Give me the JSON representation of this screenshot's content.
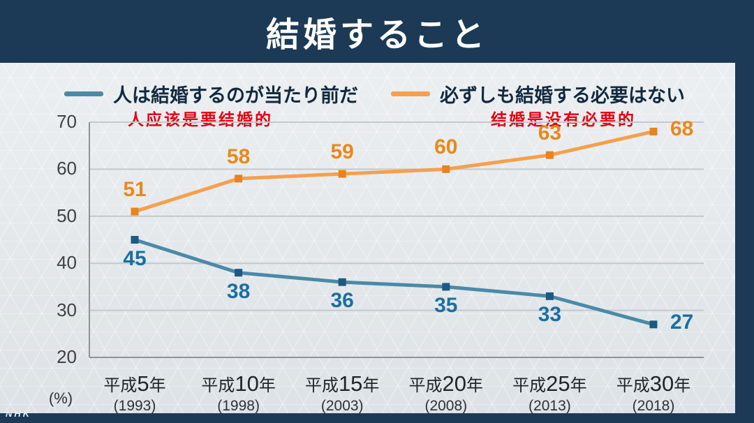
{
  "header": {
    "title": "結婚すること"
  },
  "branding": {
    "logo": "NHK"
  },
  "legend": {
    "annotation_color": "#e60012",
    "items": [
      {
        "label": "人は結婚するのが当たり前だ",
        "annotation": "人应该是要结婚的",
        "color": "#4a8aa8"
      },
      {
        "label": "必ずしも結婚する必要はない",
        "annotation": "结婚是没有必要的",
        "color": "#f5a04c"
      }
    ]
  },
  "chart_data": {
    "type": "line",
    "title": "結婚すること",
    "unit_label": "(%)",
    "grid": true,
    "legend_position": "top",
    "ylim": [
      20,
      70
    ],
    "yticks": [
      70,
      60,
      50,
      40,
      30,
      20
    ],
    "categories": [
      {
        "era_label": "平成5年",
        "year": "(1993)"
      },
      {
        "era_label": "平成10年",
        "year": "(1998)"
      },
      {
        "era_label": "平成15年",
        "year": "(2003)"
      },
      {
        "era_label": "平成20年",
        "year": "(2008)"
      },
      {
        "era_label": "平成25年",
        "year": "(2013)"
      },
      {
        "era_label": "平成30年",
        "year": "(2018)"
      }
    ],
    "series": [
      {
        "name": "人は結婚するのが当たり前だ",
        "color": "#4a8aa8",
        "marker_color": "#1c5a82",
        "label_color": "#1a6fa0",
        "values": [
          45,
          38,
          36,
          35,
          33,
          27
        ]
      },
      {
        "name": "必ずしも結婚する必要はない",
        "color": "#f5a04c",
        "marker_color": "#e8831f",
        "label_color": "#e8891a",
        "values": [
          51,
          58,
          59,
          60,
          63,
          68
        ]
      }
    ]
  }
}
